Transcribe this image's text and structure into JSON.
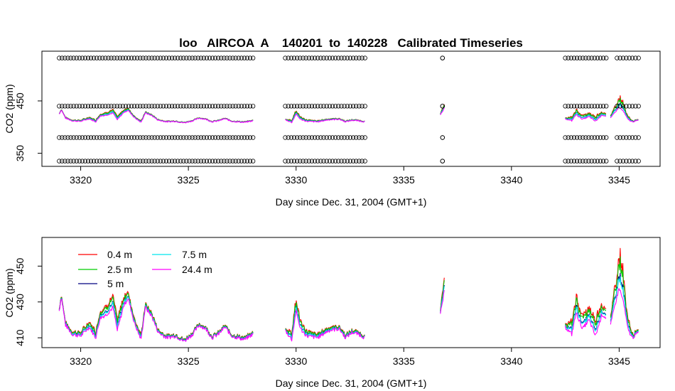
{
  "chart_data": [
    {
      "type": "scatter+line",
      "title": "loo   AIRCOA  A    140201  to  140228   Calibrated Timeseries",
      "xlabel": "Day since Dec. 31, 2004 (GMT+1)",
      "ylabel": "CO2 (ppm)",
      "xlim": [
        3318.2,
        3346.9
      ],
      "ylim": [
        325,
        545
      ],
      "x_ticks": [
        3320,
        3325,
        3330,
        3335,
        3340,
        3345
      ],
      "y_ticks": [
        350,
        450
      ],
      "calibration_points": {
        "levels": [
          335,
          380,
          440,
          532
        ],
        "segments": [
          [
            3319.0,
            3328.0
          ],
          [
            3329.5,
            3333.2
          ],
          [
            3336.8,
            3336.8
          ],
          [
            3342.5,
            3344.4
          ],
          [
            3344.9,
            3345.9
          ]
        ],
        "step": 0.135
      },
      "series": [
        {
          "name": "0.4 m",
          "color": "#ff0000"
        },
        {
          "name": "2.5 m",
          "color": "#00cd00"
        },
        {
          "name": "5 m",
          "color": "#000080"
        },
        {
          "name": "7.5 m",
          "color": "#00e5ee"
        },
        {
          "name": "24.4 m",
          "color": "#ff00ff"
        }
      ]
    },
    {
      "type": "line",
      "title": "",
      "xlabel": "Day since Dec. 31, 2004 (GMT+1)",
      "ylabel": "CO2 (ppm)",
      "xlim": [
        3318.2,
        3346.9
      ],
      "ylim": [
        404.5,
        466
      ],
      "x_ticks": [
        3320,
        3325,
        3330,
        3335,
        3340,
        3345
      ],
      "y_ticks": [
        410,
        430,
        450
      ],
      "legend_position": "top-left",
      "series": [
        {
          "name": "0.4 m",
          "color": "#ff0000"
        },
        {
          "name": "2.5 m",
          "color": "#00cd00"
        },
        {
          "name": "5 m",
          "color": "#000080"
        },
        {
          "name": "7.5 m",
          "color": "#00e5ee"
        },
        {
          "name": "24.4 m",
          "color": "#ff00ff"
        }
      ],
      "segments": [
        [
          3319.0,
          3328.0
        ],
        [
          3329.5,
          3333.2
        ],
        [
          3336.7,
          3336.9
        ],
        [
          3342.5,
          3344.4
        ],
        [
          3344.6,
          3345.9
        ]
      ],
      "baseline_keypoints": {
        "x": [
          3319.0,
          3319.1,
          3319.3,
          3319.6,
          3320.0,
          3320.4,
          3320.7,
          3320.9,
          3321.2,
          3321.5,
          3321.7,
          3322.0,
          3322.2,
          3322.5,
          3322.8,
          3323.0,
          3323.3,
          3323.6,
          3324.0,
          3324.4,
          3324.8,
          3325.2,
          3325.5,
          3325.8,
          3326.1,
          3326.4,
          3326.7,
          3327.0,
          3327.3,
          3327.6,
          3328.0,
          3329.5,
          3329.8,
          3330.0,
          3330.2,
          3330.5,
          3331.0,
          3331.5,
          3332.0,
          3332.3,
          3332.6,
          3332.9,
          3333.2,
          3336.7,
          3336.8,
          3336.9,
          3342.5,
          3342.8,
          3343.0,
          3343.3,
          3343.6,
          3343.9,
          3344.2,
          3344.4,
          3344.6,
          3344.8,
          3345.0,
          3345.2,
          3345.4,
          3345.6,
          3345.9
        ],
        "y": [
          425,
          433,
          417,
          412,
          411,
          416,
          410,
          421,
          423,
          427,
          414,
          428,
          432,
          418,
          409,
          427,
          422,
          413,
          410,
          411,
          408,
          412,
          417,
          415,
          410,
          412,
          416,
          411,
          410,
          409,
          412,
          414,
          409,
          425,
          415,
          411,
          410,
          414,
          415,
          410,
          413,
          412,
          410,
          423,
          430,
          437,
          416,
          412,
          424,
          415,
          420,
          411,
          423,
          421,
          417,
          428,
          438,
          430,
          415,
          410,
          413
        ]
      },
      "peak_offsets": {
        "x": [
          3319.0,
          3320.0,
          3321.0,
          3321.5,
          3322.0,
          3322.3,
          3323.0,
          3324.0,
          3326.0,
          3328.0,
          3329.5,
          3330.0,
          3330.3,
          3331.0,
          3333.2,
          3336.7,
          3336.8,
          3336.9,
          3342.5,
          3343.0,
          3343.5,
          3344.0,
          3344.4,
          3344.6,
          3345.0,
          3345.1,
          3345.3,
          3345.6,
          3345.9
        ],
        "y": [
          1,
          2,
          4,
          6,
          5,
          3,
          2,
          1,
          1,
          1,
          1,
          7,
          3,
          2,
          1,
          2,
          5,
          7,
          2,
          9,
          6,
          9,
          4,
          4,
          17,
          20,
          8,
          2,
          1
        ]
      },
      "series_factors": [
        1.0,
        0.8,
        0.4,
        0.32,
        0.0
      ]
    }
  ],
  "legend": {
    "items": [
      {
        "label": "0.4 m",
        "color": "#ff0000"
      },
      {
        "label": "2.5 m",
        "color": "#00cd00"
      },
      {
        "label": "5 m",
        "color": "#000080"
      },
      {
        "label": "7.5 m",
        "color": "#00e5ee"
      },
      {
        "label": "24.4 m",
        "color": "#ff00ff"
      }
    ]
  }
}
